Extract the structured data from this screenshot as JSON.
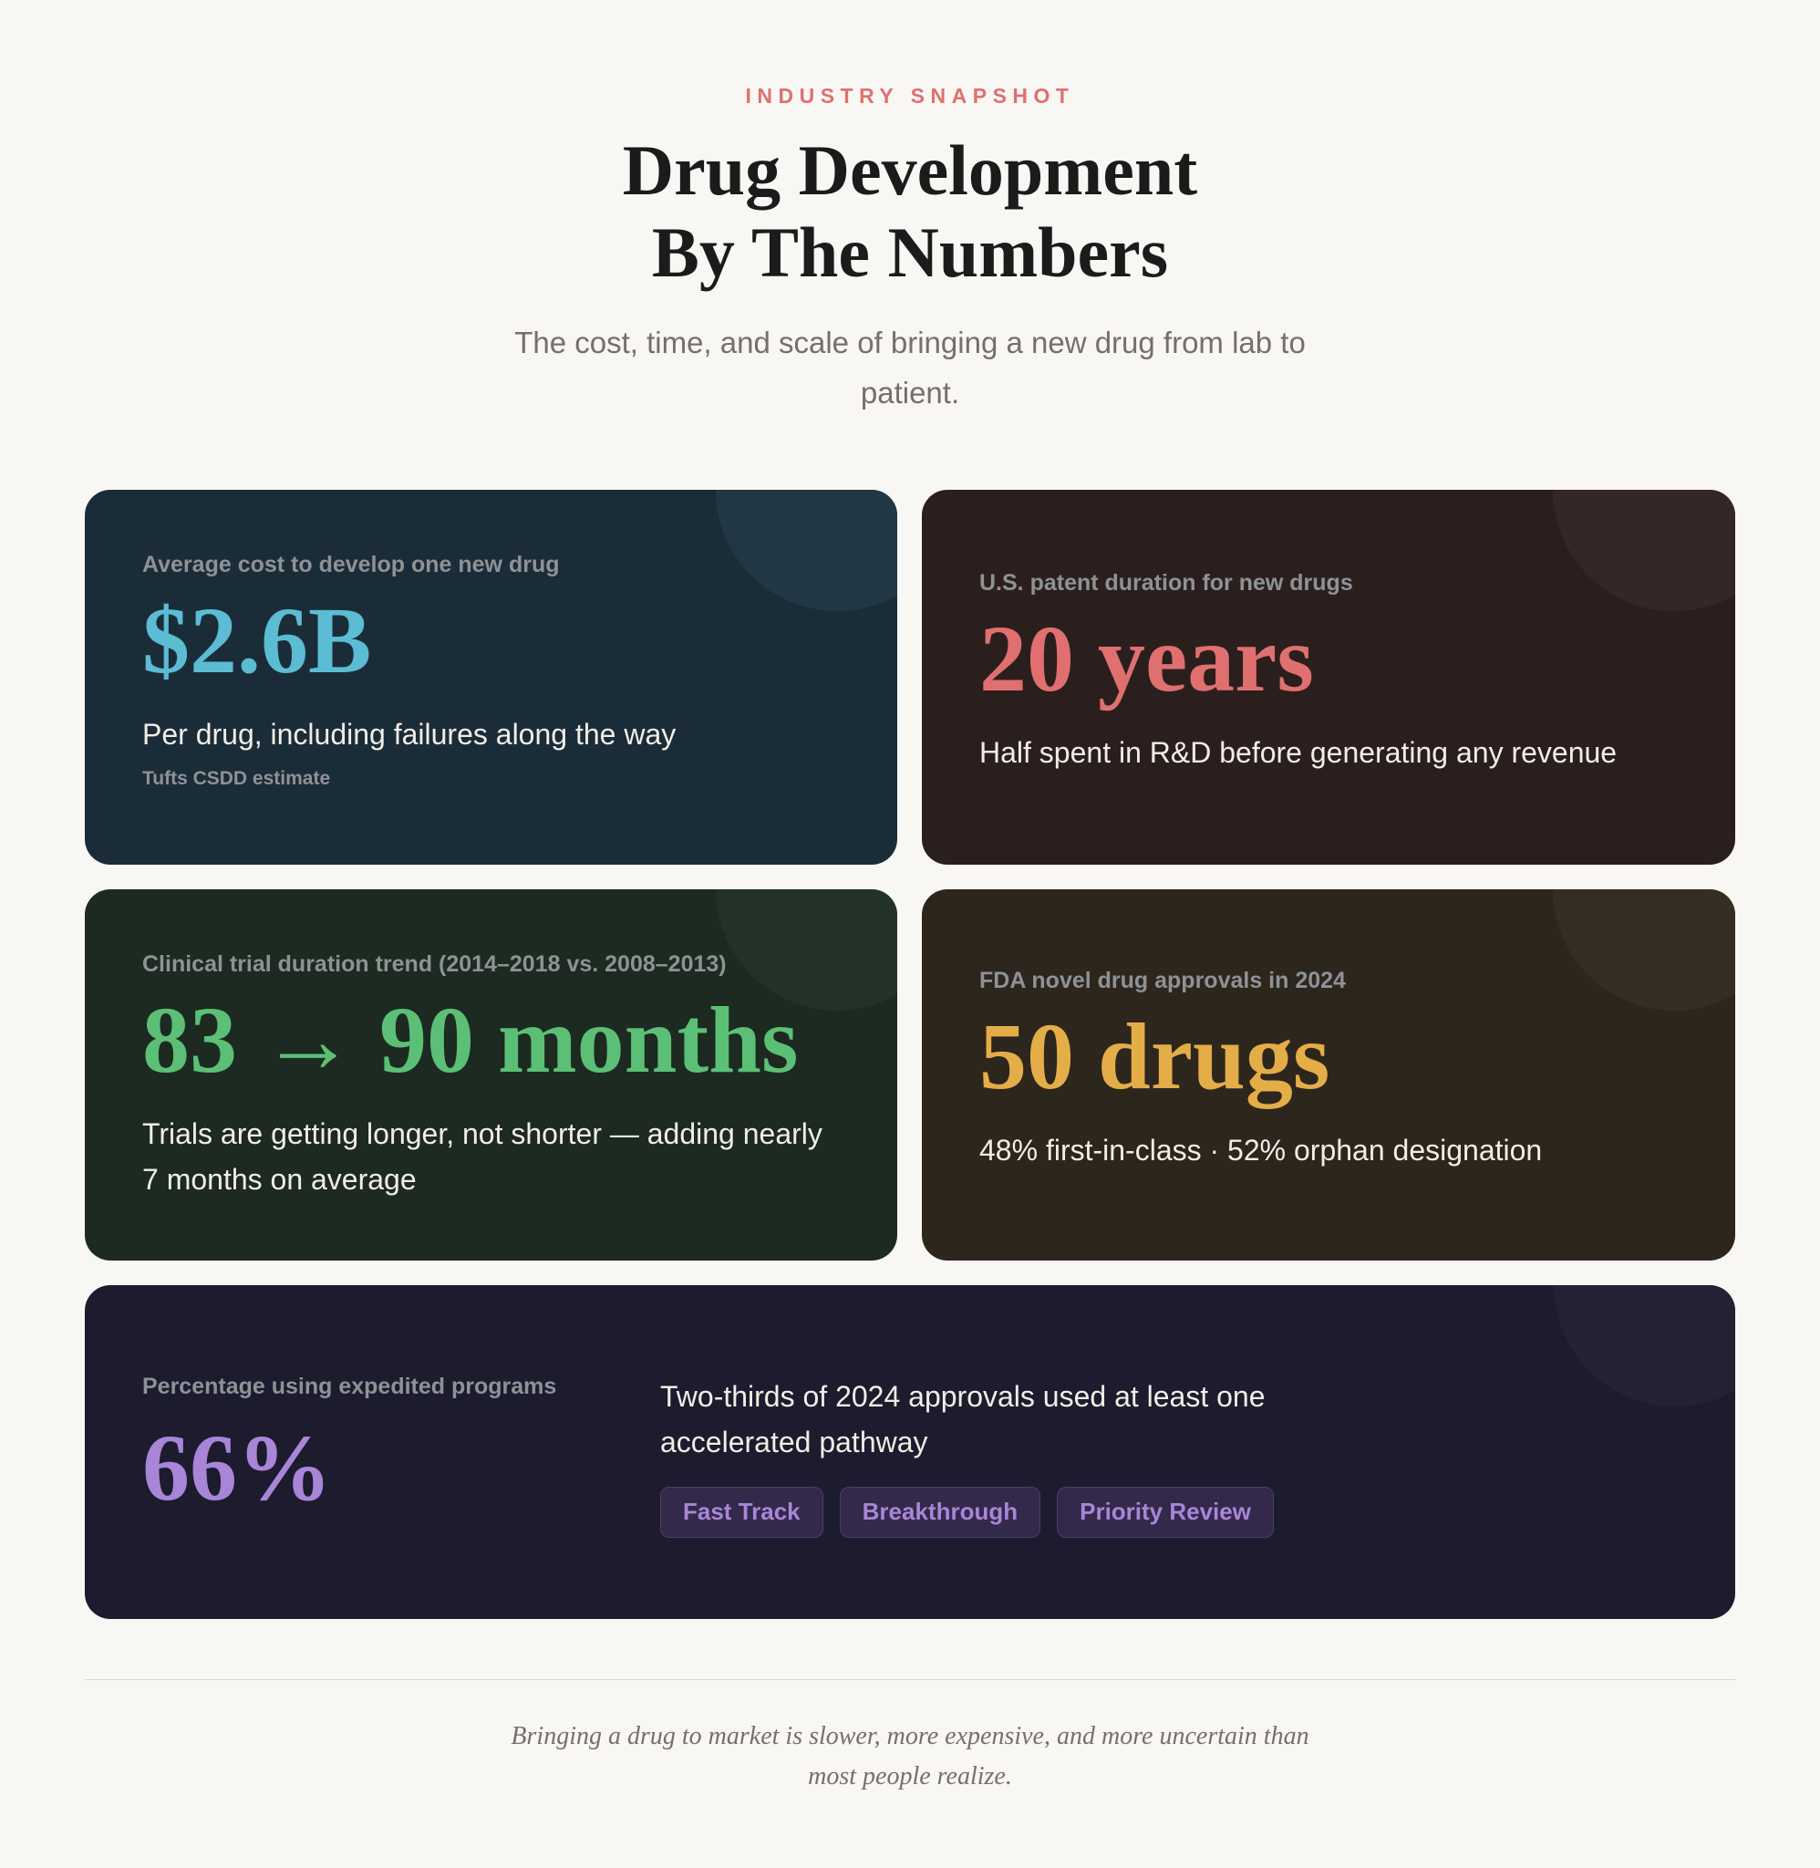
{
  "header": {
    "eyebrow": "INDUSTRY SNAPSHOT",
    "title_line1": "Drug Development",
    "title_line2": "By The Numbers",
    "subtitle": "The cost, time, and scale of bringing a new drug from lab to patient."
  },
  "cards": {
    "cost": {
      "label": "Average cost to develop one new drug",
      "value": "$2.6B",
      "description": "Per drug, including failures along the way",
      "source": "Tufts CSDD estimate",
      "accent": "#5bbcd3"
    },
    "patent": {
      "label": "U.S. patent duration for new drugs",
      "value": "20 years",
      "description": "Half spent in R&D before generating any revenue",
      "accent": "#e07070"
    },
    "trial": {
      "label": "Clinical trial duration trend (2014–2018 vs. 2008–2013)",
      "value": "83 → 90 months",
      "description": "Trials are getting longer, not shorter — adding nearly 7 months on average",
      "accent": "#5cbf76"
    },
    "fda": {
      "label": "FDA novel drug approvals in 2024",
      "value": "50 drugs",
      "description": "48% first-in-class · 52% orphan designation",
      "accent": "#e5ad48"
    },
    "expedited": {
      "label": "Percentage using expedited programs",
      "value": "66%",
      "description": "Two-thirds of 2024 approvals used at least one accelerated pathway",
      "tags": [
        "Fast Track",
        "Breakthrough",
        "Priority Review"
      ],
      "accent": "#a985d8"
    }
  },
  "footer": {
    "text": "Bringing a drug to market is slower, more expensive, and more uncertain than most people realize."
  }
}
